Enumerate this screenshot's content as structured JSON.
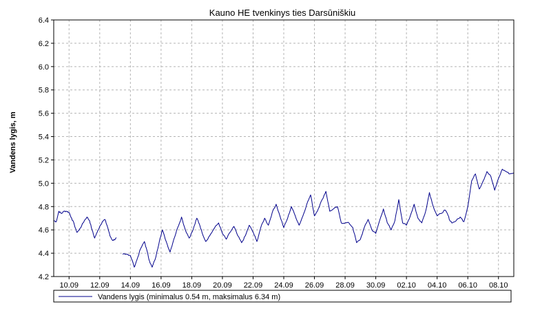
{
  "colors": {
    "series_line": "#00008b",
    "grid": "#b4b4b4",
    "axis": "#000000",
    "background": "#ffffff"
  },
  "chart_data": {
    "type": "line",
    "title": "Kauno HE tvenkinys ties Darsūniškiu",
    "xlabel": "",
    "ylabel": "Vandens lygis, m",
    "x_unit": "day",
    "xlim": [
      "09.09",
      "08.10"
    ],
    "ylim": [
      4.2,
      6.4
    ],
    "yticks": [
      "4.2",
      "4.4",
      "4.6",
      "4.8",
      "5.0",
      "5.2",
      "5.4",
      "5.6",
      "5.8",
      "6.0",
      "6.2",
      "6.4"
    ],
    "xticks": [
      "10.09",
      "12.09",
      "14.09",
      "16.09",
      "18.09",
      "20.09",
      "22.09",
      "24.09",
      "26.09",
      "28.09",
      "30.09",
      "02.10",
      "04.10",
      "06.10",
      "08.10"
    ],
    "grid": true,
    "legend_position": "bottom",
    "series": [
      {
        "name": "Vandens lygis (minimalus 0.54 m, maksimalus 6.34 m)",
        "segments": [
          [
            [
              "09.09 00:00",
              4.68
            ],
            [
              "09.09 04:00",
              4.67
            ],
            [
              "09.09 08:00",
              4.76
            ],
            [
              "09.09 12:00",
              4.74
            ],
            [
              "09.09 16:00",
              4.76
            ],
            [
              "09.09 20:00",
              4.76
            ],
            [
              "10.09 00:00",
              4.75
            ],
            [
              "10.09 04:00",
              4.7
            ],
            [
              "10.09 08:00",
              4.65
            ],
            [
              "10.09 12:00",
              4.58
            ],
            [
              "10.09 16:00",
              4.6
            ],
            [
              "10.09 20:00",
              4.64
            ],
            [
              "11.09 00:00",
              4.68
            ],
            [
              "11.09 04:00",
              4.71
            ],
            [
              "11.09 08:00",
              4.68
            ],
            [
              "11.09 12:00",
              4.6
            ],
            [
              "11.09 16:00",
              4.53
            ],
            [
              "11.09 20:00",
              4.58
            ],
            [
              "12.09 00:00",
              4.63
            ],
            [
              "12.09 04:00",
              4.67
            ],
            [
              "12.09 08:00",
              4.69
            ],
            [
              "12.09 12:00",
              4.63
            ],
            [
              "12.09 16:00",
              4.55
            ],
            [
              "12.09 20:00",
              4.51
            ],
            [
              "13.09 00:00",
              4.52
            ],
            [
              "13.09 02:00",
              4.53
            ]
          ],
          [
            [
              "13.09 12:00",
              4.39
            ],
            [
              "13.09 16:00",
              4.39
            ],
            [
              "13.09 20:00",
              4.39
            ],
            [
              "14.09 00:00",
              4.38
            ],
            [
              "14.09 04:00",
              4.32
            ],
            [
              "14.09 06:00",
              4.28
            ],
            [
              "14.09 10:00",
              4.34
            ],
            [
              "14.09 16:00",
              4.44
            ],
            [
              "14.09 22:00",
              4.5
            ],
            [
              "15.09 02:00",
              4.42
            ],
            [
              "15.09 06:00",
              4.33
            ],
            [
              "15.09 10:00",
              4.28
            ],
            [
              "15.09 16:00",
              4.37
            ],
            [
              "15.09 22:00",
              4.52
            ],
            [
              "16.09 02:00",
              4.6
            ],
            [
              "16.09 08:00",
              4.5
            ],
            [
              "16.09 14:00",
              4.41
            ],
            [
              "16.09 20:00",
              4.52
            ],
            [
              "17.09 02:00",
              4.62
            ],
            [
              "17.09 08:00",
              4.71
            ],
            [
              "17.09 14:00",
              4.6
            ],
            [
              "17.09 20:00",
              4.53
            ],
            [
              "18.09 02:00",
              4.6
            ],
            [
              "18.09 08:00",
              4.7
            ],
            [
              "18.09 12:00",
              4.65
            ],
            [
              "18.09 16:00",
              4.58
            ],
            [
              "18.09 22:00",
              4.5
            ],
            [
              "19.09 04:00",
              4.55
            ],
            [
              "19.09 12:00",
              4.62
            ],
            [
              "19.09 18:00",
              4.66
            ],
            [
              "20.09 00:00",
              4.57
            ],
            [
              "20.09 06:00",
              4.52
            ],
            [
              "20.09 12:00",
              4.58
            ],
            [
              "20.09 18:00",
              4.63
            ],
            [
              "21.09 00:00",
              4.55
            ],
            [
              "21.09 06:00",
              4.49
            ],
            [
              "21.09 12:00",
              4.55
            ],
            [
              "21.09 18:00",
              4.64
            ],
            [
              "22.09 00:00",
              4.58
            ],
            [
              "22.09 06:00",
              4.5
            ],
            [
              "22.09 12:00",
              4.62
            ],
            [
              "22.09 18:00",
              4.7
            ],
            [
              "23.09 00:00",
              4.64
            ],
            [
              "23.09 06:00",
              4.75
            ],
            [
              "23.09 12:00",
              4.82
            ],
            [
              "23.09 18:00",
              4.72
            ],
            [
              "24.09 00:00",
              4.62
            ],
            [
              "24.09 06:00",
              4.7
            ],
            [
              "24.09 12:00",
              4.8
            ],
            [
              "24.09 18:00",
              4.72
            ],
            [
              "25.09 00:00",
              4.64
            ],
            [
              "25.09 06:00",
              4.72
            ],
            [
              "25.09 12:00",
              4.82
            ],
            [
              "25.09 18:00",
              4.9
            ],
            [
              "26.09 00:00",
              4.72
            ],
            [
              "26.09 06:00",
              4.78
            ],
            [
              "26.09 12:00",
              4.86
            ],
            [
              "26.09 18:00",
              4.93
            ],
            [
              "27.09 00:00",
              4.76
            ],
            [
              "27.09 06:00",
              4.78
            ],
            [
              "27.09 12:00",
              4.8
            ],
            [
              "27.09 18:00",
              4.66
            ],
            [
              "28.09 00:00",
              4.66
            ],
            [
              "28.09 06:00",
              4.66
            ],
            [
              "28.09 12:00",
              4.62
            ],
            [
              "28.09 18:00",
              4.49
            ],
            [
              "29.09 00:00",
              4.52
            ],
            [
              "29.09 06:00",
              4.62
            ],
            [
              "29.09 12:00",
              4.69
            ],
            [
              "29.09 18:00",
              4.6
            ],
            [
              "30.09 00:00",
              4.57
            ],
            [
              "30.09 06:00",
              4.68
            ],
            [
              "30.09 12:00",
              4.78
            ],
            [
              "30.09 18:00",
              4.66
            ],
            [
              "01.10 00:00",
              4.6
            ],
            [
              "01.10 06:00",
              4.68
            ],
            [
              "01.10 12:00",
              4.86
            ],
            [
              "01.10 18:00",
              4.66
            ],
            [
              "02.10 00:00",
              4.64
            ],
            [
              "02.10 06:00",
              4.72
            ],
            [
              "02.10 12:00",
              4.82
            ],
            [
              "02.10 18:00",
              4.7
            ],
            [
              "03.10 00:00",
              4.66
            ],
            [
              "03.10 06:00",
              4.76
            ],
            [
              "03.10 12:00",
              4.92
            ],
            [
              "03.10 18:00",
              4.8
            ],
            [
              "04.10 00:00",
              4.72
            ],
            [
              "04.10 06:00",
              4.74
            ],
            [
              "04.10 12:00",
              4.77
            ],
            [
              "04.10 16:00",
              4.74
            ],
            [
              "04.10 20:00",
              4.68
            ],
            [
              "05.10 00:00",
              4.66
            ],
            [
              "05.10 06:00",
              4.68
            ],
            [
              "05.10 12:00",
              4.71
            ],
            [
              "05.10 18:00",
              4.67
            ],
            [
              "06.10 00:00",
              4.8
            ],
            [
              "06.10 06:00",
              5.02
            ],
            [
              "06.10 12:00",
              5.08
            ],
            [
              "06.10 18:00",
              4.95
            ],
            [
              "07.10 00:00",
              5.02
            ],
            [
              "07.10 06:00",
              5.1
            ],
            [
              "07.10 12:00",
              5.06
            ],
            [
              "07.10 18:00",
              4.94
            ],
            [
              "08.10 00:00",
              5.04
            ],
            [
              "08.10 06:00",
              5.12
            ],
            [
              "08.10 12:00",
              5.1
            ],
            [
              "08.10 18:00",
              5.08
            ],
            [
              "09.10 00:00",
              5.09
            ]
          ]
        ]
      }
    ]
  }
}
